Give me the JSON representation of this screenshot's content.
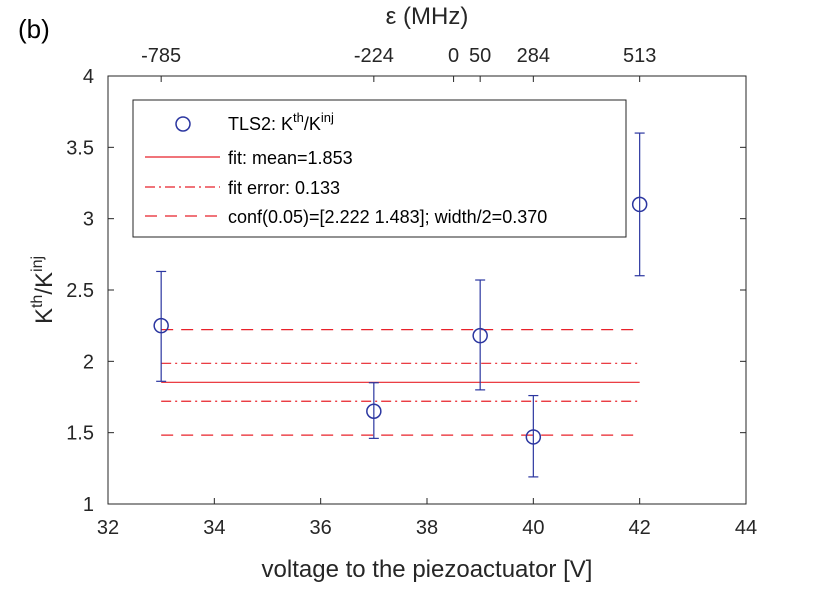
{
  "panel_label": "(b)",
  "chart_data": {
    "type": "scatter",
    "xlabel": "voltage to the piezoactuator [V]",
    "ylabel": {
      "base": "K",
      "sup1": "th",
      "mid": "/K",
      "sup2": "inj"
    },
    "top_xlabel": "ε (MHz)",
    "xlim": [
      32,
      44
    ],
    "ylim": [
      1,
      4
    ],
    "xticks": [
      32,
      34,
      36,
      38,
      40,
      42,
      44
    ],
    "yticks": [
      1,
      1.5,
      2,
      2.5,
      3,
      3.5,
      4
    ],
    "top_ticks": [
      {
        "x": 33,
        "label": "-785"
      },
      {
        "x": 37,
        "label": "-224"
      },
      {
        "x": 38.5,
        "label": "0"
      },
      {
        "x": 39,
        "label": "50"
      },
      {
        "x": 40,
        "label": "284"
      },
      {
        "x": 42,
        "label": "513"
      }
    ],
    "series": [
      {
        "name": "TLS2: K^th/K^inj",
        "color": "#2b36a0",
        "points": [
          {
            "x": 33,
            "y": 2.25,
            "lower": 1.86,
            "upper": 2.63
          },
          {
            "x": 37,
            "y": 1.65,
            "lower": 1.46,
            "upper": 1.85
          },
          {
            "x": 39,
            "y": 2.18,
            "lower": 1.8,
            "upper": 2.57
          },
          {
            "x": 40,
            "y": 1.47,
            "lower": 1.19,
            "upper": 1.76
          },
          {
            "x": 42,
            "y": 3.1,
            "lower": 2.6,
            "upper": 3.6
          }
        ]
      }
    ],
    "lines": [
      {
        "name": "fit: mean=1.853",
        "y": 1.853,
        "style": "solid",
        "x_range": [
          33,
          42
        ],
        "color": "#e8222a"
      },
      {
        "name": "fit error: 0.133",
        "y": 1.986,
        "style": "dashdot",
        "x_range": [
          33,
          42
        ],
        "color": "#e8222a"
      },
      {
        "name": "fit error: 0.133",
        "y": 1.72,
        "style": "dashdot",
        "x_range": [
          33,
          42
        ],
        "color": "#e8222a"
      },
      {
        "name": "conf(0.05)=[2.222 1.483]; width/2=0.370",
        "y": 2.222,
        "style": "dashed",
        "x_range": [
          33,
          42
        ],
        "color": "#e8222a"
      },
      {
        "name": "conf(0.05)=[2.222 1.483]; width/2=0.370",
        "y": 1.483,
        "style": "dashed",
        "x_range": [
          33,
          42
        ],
        "color": "#e8222a"
      }
    ],
    "legend": {
      "placement": "top-left",
      "entries": [
        {
          "marker": "circle",
          "text_base": "TLS2: K",
          "text_sup1": "th",
          "text_mid": "/K",
          "text_sup2": "inj"
        },
        {
          "marker": "solid",
          "text": "fit: mean=1.853"
        },
        {
          "marker": "dashdot",
          "text": "fit error: 0.133"
        },
        {
          "marker": "dashed",
          "text": "conf(0.05)=[2.222 1.483]; width/2=0.370"
        }
      ]
    },
    "grid": false
  }
}
